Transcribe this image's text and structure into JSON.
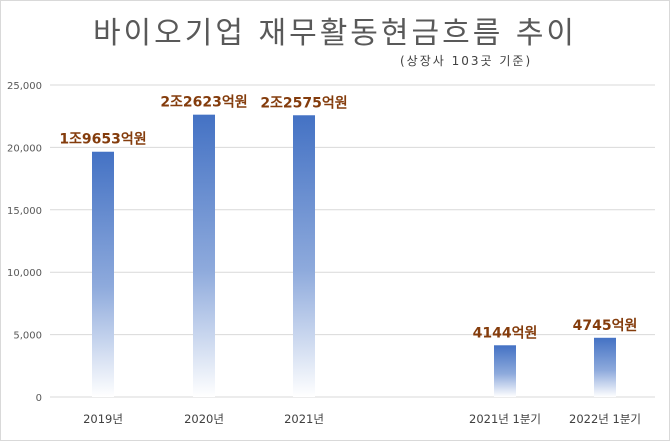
{
  "chart_data": {
    "type": "bar",
    "title": "바이오기업 재무활동현금흐름 추이",
    "subtitle": "(상장사 103곳 기준)",
    "categories": [
      "2019년",
      "2020년",
      "2021년",
      "2021년 1분기",
      "2022년 1분기"
    ],
    "values": [
      19653,
      22623,
      22575,
      4144,
      4745
    ],
    "data_labels": [
      "1조9653억원",
      "2조2623억원",
      "2조2575억원",
      "4144억원",
      "4745억원"
    ],
    "y_ticks": [
      "0",
      "5,000",
      "10,000",
      "15,000",
      "20,000",
      "25,000"
    ],
    "ylim": [
      0,
      25000
    ],
    "grid": true,
    "legend": "none",
    "colors": {
      "bar_top": "#4472c4",
      "bar_bottom": "#ffffff",
      "label": "#843c0c",
      "grid": "#d9d9d9"
    }
  }
}
